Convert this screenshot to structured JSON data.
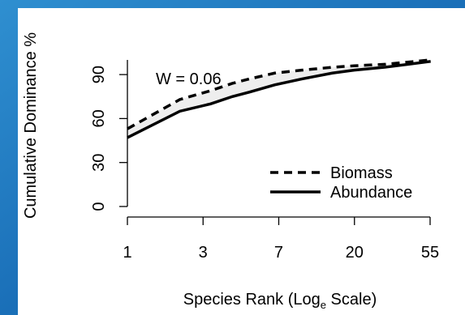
{
  "chart_data": {
    "type": "line",
    "y_label": "Cumulative Dominance %",
    "x_label": {
      "before": "Species Rank (Log",
      "subscript": "e",
      "after": " Scale)"
    },
    "annotation": "W = 0.06",
    "x": [
      1,
      2,
      3,
      4,
      5,
      7,
      10,
      15,
      20,
      30,
      55
    ],
    "series": [
      {
        "name": "Biomass",
        "color": "#000000",
        "dash": true,
        "values": [
          53,
          73,
          79,
          84,
          87,
          91,
          93,
          95,
          96,
          97,
          100
        ]
      },
      {
        "name": "Abundance",
        "color": "#000000",
        "dash": false,
        "values": [
          47,
          65,
          70,
          75,
          78,
          83,
          87,
          91,
          93,
          95,
          99
        ]
      }
    ],
    "xlim": [
      1,
      54.6
    ],
    "xlog": true,
    "xticks": [
      {
        "value": 1,
        "label": "1"
      },
      {
        "value": 2.718,
        "label": "3"
      },
      {
        "value": 7.389,
        "label": "7"
      },
      {
        "value": 20.09,
        "label": "20"
      },
      {
        "value": 54.6,
        "label": "55"
      }
    ],
    "ylim": [
      0,
      100
    ],
    "yticks": [
      0,
      30,
      60,
      90
    ],
    "fill_between_color": "#eeeeee",
    "legend": "bottom-right"
  }
}
